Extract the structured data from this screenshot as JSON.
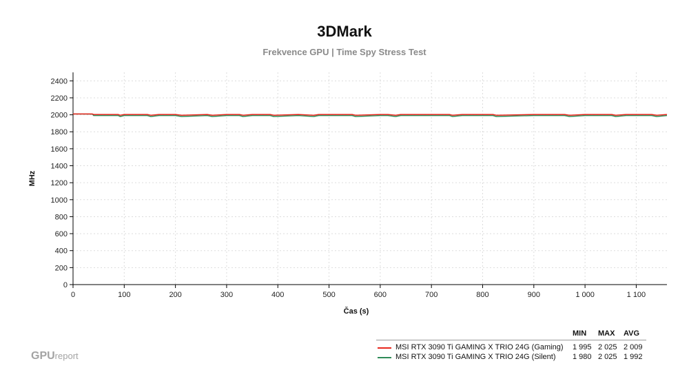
{
  "chart_data": {
    "type": "line",
    "title": "3DMark",
    "subtitle": "Frekvence GPU | Time Spy Stress Test",
    "xlabel": "Čas (s)",
    "ylabel": "MHz",
    "xlim": [
      0,
      1160
    ],
    "ylim": [
      0,
      2500
    ],
    "x_ticks": [
      0,
      100,
      200,
      300,
      400,
      500,
      600,
      700,
      800,
      900,
      1000,
      1100
    ],
    "x_tick_labels": [
      "0",
      "100",
      "200",
      "300",
      "400",
      "500",
      "600",
      "700",
      "800",
      "900",
      "1 000",
      "1 100"
    ],
    "y_ticks": [
      0,
      200,
      400,
      600,
      800,
      1000,
      1200,
      1400,
      1600,
      1800,
      2000,
      2200,
      2400
    ],
    "y_tick_labels": [
      "0",
      "200",
      "400",
      "600",
      "800",
      "1000",
      "1200",
      "1400",
      "1600",
      "1800",
      "2000",
      "2200",
      "2400"
    ],
    "grid": true,
    "legend_position": "bottom-right",
    "series": [
      {
        "name": "MSI RTX 3090 Ti GAMING X TRIO 24G (Gaming)",
        "color": "#e8261c",
        "x": [
          0,
          38,
          40,
          88,
          92,
          100,
          145,
          152,
          168,
          200,
          212,
          262,
          272,
          300,
          325,
          332,
          350,
          385,
          392,
          440,
          470,
          480,
          545,
          552,
          600,
          615,
          630,
          640,
          700,
          735,
          741,
          760,
          800,
          820,
          827,
          900,
          960,
          970,
          1000,
          1052,
          1060,
          1080,
          1130,
          1140,
          1160
        ],
        "y": [
          2010,
          2010,
          2004,
          2004,
          1995,
          2004,
          2004,
          1995,
          2004,
          2004,
          1995,
          2004,
          1995,
          2004,
          2004,
          1995,
          2004,
          2004,
          1995,
          2004,
          1995,
          2004,
          2004,
          1995,
          2004,
          2004,
          1995,
          2004,
          2004,
          2004,
          1995,
          2004,
          2004,
          2004,
          1995,
          2004,
          2004,
          1995,
          2004,
          2004,
          1995,
          2004,
          2004,
          1995,
          2004
        ]
      },
      {
        "name": "MSI RTX 3090 Ti GAMING X TRIO 24G (Silent)",
        "color": "#2e8b57",
        "x": [
          0,
          38,
          40,
          88,
          92,
          100,
          145,
          152,
          168,
          200,
          212,
          262,
          272,
          300,
          325,
          332,
          350,
          385,
          392,
          440,
          470,
          480,
          545,
          552,
          600,
          615,
          630,
          640,
          700,
          735,
          741,
          760,
          800,
          820,
          827,
          900,
          960,
          970,
          1000,
          1052,
          1060,
          1080,
          1130,
          1140,
          1160
        ],
        "y": [
          2010,
          2008,
          1992,
          1992,
          1980,
          1992,
          1992,
          1980,
          1992,
          1992,
          1980,
          1992,
          1980,
          1992,
          1992,
          1980,
          1992,
          1992,
          1980,
          1992,
          1980,
          1992,
          1992,
          1980,
          1992,
          1992,
          1980,
          1992,
          1992,
          1992,
          1980,
          1992,
          1992,
          1992,
          1980,
          1992,
          1992,
          1980,
          1992,
          1992,
          1980,
          1992,
          1992,
          1980,
          1992
        ]
      }
    ]
  },
  "legend": {
    "headers": {
      "min": "MIN",
      "max": "MAX",
      "avg": "AVG"
    },
    "rows": [
      {
        "name": "MSI RTX 3090 Ti GAMING X TRIO 24G (Gaming)",
        "color": "#e8261c",
        "min": "1 995",
        "max": "2 025",
        "avg": "2 009"
      },
      {
        "name": "MSI RTX 3090 Ti GAMING X TRIO 24G (Silent)",
        "color": "#2e8b57",
        "min": "1 980",
        "max": "2 025",
        "avg": "1 992"
      }
    ]
  },
  "brand": {
    "main": "GPU",
    "sub": "report"
  }
}
